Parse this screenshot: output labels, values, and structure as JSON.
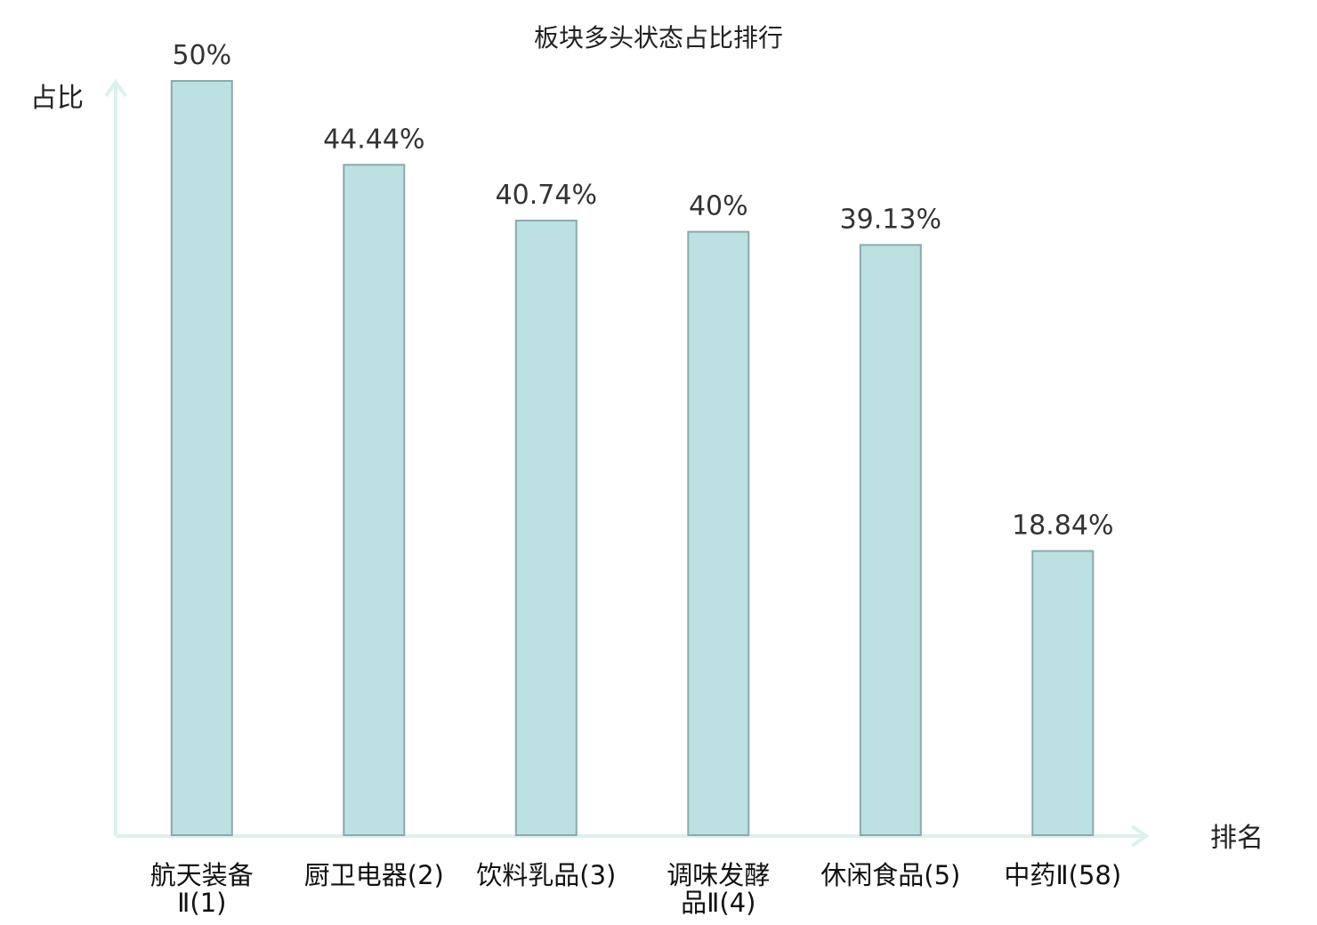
{
  "chart_data": {
    "type": "bar",
    "title": "板块多头状态占比排行",
    "ylabel": "占比",
    "xlabel": "排名",
    "categories": [
      {
        "lines": [
          "航天装备",
          "Ⅱ(1)"
        ],
        "highlight": false
      },
      {
        "lines": [
          "厨卫电器(2)"
        ],
        "highlight": false
      },
      {
        "lines": [
          "饮料乳品(3)"
        ],
        "highlight": false
      },
      {
        "lines": [
          "调味发酵",
          "品Ⅱ(4)"
        ],
        "highlight": false
      },
      {
        "lines": [
          "休闲食品(5)"
        ],
        "highlight": false
      },
      {
        "lines": [
          "中药Ⅱ(58)"
        ],
        "highlight": true
      }
    ],
    "values": [
      50,
      44.44,
      40.74,
      40,
      39.13,
      18.84
    ],
    "value_labels": [
      "50%",
      "44.44%",
      "40.74%",
      "40%",
      "39.13%",
      "18.84%"
    ],
    "ylim": [
      0,
      50
    ],
    "grid": false,
    "colors": {
      "bar_fill": "#bde0e3",
      "bar_stroke": "#8aa9ad",
      "axis": "#dcf1ee",
      "highlight_text": "#e02020",
      "text": "#111111"
    }
  }
}
